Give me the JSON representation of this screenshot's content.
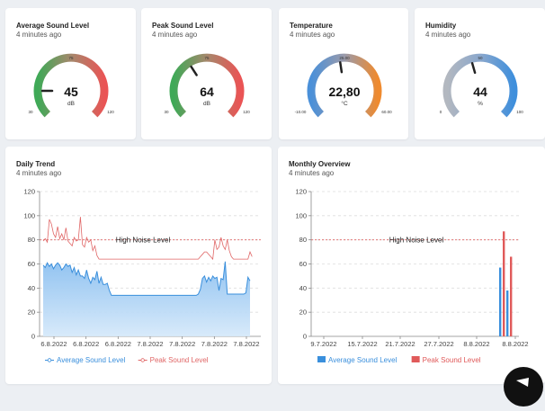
{
  "gauges": [
    {
      "title": "Average Sound Level",
      "subtitle": "4 minutes ago",
      "value": "45",
      "unit": "dB",
      "min_label": "30",
      "mid_label": "75",
      "max_label": "120",
      "min": 30,
      "max": 120,
      "current": 45,
      "gradient": [
        "#3fa957",
        "#a5886c",
        "#ea5455"
      ]
    },
    {
      "title": "Peak Sound Level",
      "subtitle": "4 minutes ago",
      "value": "64",
      "unit": "dB",
      "min_label": "30",
      "mid_label": "75",
      "max_label": "120",
      "min": 30,
      "max": 120,
      "current": 64,
      "gradient": [
        "#3fa957",
        "#a5886c",
        "#ea5455"
      ]
    },
    {
      "title": "Temperature",
      "subtitle": "4 minutes ago",
      "value": "22,80",
      "unit": "°C",
      "min_label": "-10.00",
      "mid_label": "25.00",
      "max_label": "60.00",
      "min": -10,
      "max": 60,
      "current": 22.8,
      "gradient": [
        "#4a90d9",
        "#9a9aaa",
        "#ef8a2e"
      ]
    },
    {
      "title": "Humidity",
      "subtitle": "4 minutes ago",
      "value": "44",
      "unit": "%",
      "min_label": "0",
      "mid_label": "50",
      "max_label": "100",
      "min": 0,
      "max": 100,
      "current": 44,
      "gradient": [
        "#b3b8c0",
        "#8aa7cc",
        "#3f8fdc"
      ]
    }
  ],
  "daily": {
    "title": "Daily Trend",
    "subtitle": "4 minutes ago",
    "threshold_label": "High Noise Level",
    "legend": [
      "Average Sound Level",
      "Peak Sound Level"
    ],
    "chart_data": {
      "type": "line",
      "ylim": [
        0,
        120
      ],
      "yticks": [
        "0",
        "20",
        "40",
        "60",
        "80",
        "100",
        "120"
      ],
      "x_labels": [
        "6.8.2022",
        "6.8.2022",
        "6.8.2022",
        "7.8.2022",
        "7.8.2022",
        "7.8.2022",
        "7.8.2022"
      ],
      "threshold": 80,
      "series": [
        {
          "name": "Average Sound Level",
          "color": "#3a8fdc",
          "values": [
            59,
            57,
            61,
            58,
            60,
            56,
            59,
            61,
            59,
            55,
            57,
            60,
            58,
            59,
            53,
            57,
            51,
            55,
            50,
            50,
            48,
            55,
            48,
            44,
            49,
            47,
            54,
            44,
            49,
            43,
            43,
            44,
            38,
            34,
            34,
            34,
            34,
            34,
            34,
            34,
            34,
            34,
            34,
            34,
            34,
            34,
            34,
            34,
            34,
            34,
            34,
            34,
            34,
            34,
            34,
            34,
            34,
            34,
            34,
            34,
            34,
            34,
            34,
            34,
            34,
            34,
            34,
            34,
            34,
            34,
            34,
            34,
            34,
            34,
            34,
            35,
            39,
            48,
            50,
            45,
            49,
            46,
            50,
            48,
            49,
            38,
            48,
            47,
            62,
            35,
            35,
            35,
            35,
            35,
            35,
            35,
            35,
            35,
            36,
            49,
            46
          ]
        },
        {
          "name": "Peak Sound Level",
          "color": "#e06666",
          "values": [
            79,
            81,
            78,
            97,
            93,
            85,
            82,
            91,
            81,
            85,
            80,
            90,
            79,
            77,
            75,
            82,
            79,
            80,
            99,
            76,
            74,
            82,
            78,
            80,
            71,
            75,
            67,
            64,
            64,
            64,
            64,
            64,
            64,
            64,
            64,
            64,
            64,
            64,
            64,
            64,
            64,
            64,
            64,
            64,
            64,
            64,
            64,
            64,
            64,
            64,
            64,
            64,
            64,
            64,
            64,
            64,
            64,
            64,
            64,
            64,
            64,
            64,
            64,
            64,
            64,
            64,
            64,
            64,
            64,
            64,
            64,
            64,
            64,
            64,
            64,
            64,
            66,
            68,
            70,
            70,
            68,
            66,
            64,
            80,
            72,
            74,
            82,
            75,
            72,
            80,
            71,
            66,
            64,
            64,
            64,
            64,
            64,
            64,
            64,
            64,
            70,
            66
          ]
        }
      ]
    }
  },
  "monthly": {
    "title": "Monthly Overview",
    "subtitle": "4 minutes ago",
    "threshold_label": "High Noise Level",
    "legend": [
      "Average Sound Level",
      "Peak Sound Level"
    ],
    "chart_data": {
      "type": "bar",
      "ylim": [
        0,
        120
      ],
      "yticks": [
        "0",
        "20",
        "40",
        "60",
        "80",
        "100",
        "120"
      ],
      "x_labels": [
        "9.7.2022",
        "15.7.2022",
        "21.7.2022",
        "27.7.2022",
        "8.8.2022",
        "8.8.2022"
      ],
      "threshold": 80,
      "series": [
        {
          "name": "Average Sound Level",
          "color": "#3a8fdc",
          "values": [
            57,
            38
          ]
        },
        {
          "name": "Peak Sound Level",
          "color": "#e05a5a",
          "values": [
            87,
            66
          ]
        }
      ]
    }
  }
}
